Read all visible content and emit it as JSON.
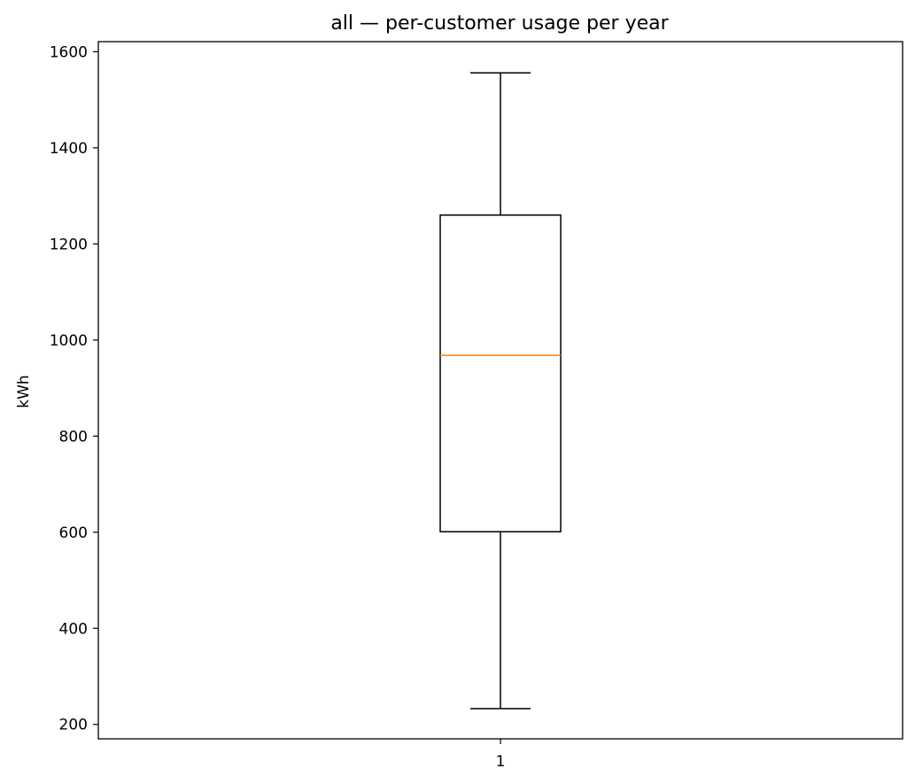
{
  "chart_data": {
    "type": "box",
    "title": "all — per-customer usage per year",
    "xlabel": "",
    "ylabel": "kWh",
    "categories": [
      "1"
    ],
    "ylim": [
      170,
      1621
    ],
    "yticks": [
      200,
      400,
      600,
      800,
      1000,
      1200,
      1400,
      1600
    ],
    "series": [
      {
        "whisker_low": 233,
        "q1": 601,
        "median": 968,
        "q3": 1260,
        "whisker_high": 1556
      }
    ],
    "grid": false,
    "colors": {
      "box": "#000000",
      "median": "#ff7f0e"
    }
  }
}
